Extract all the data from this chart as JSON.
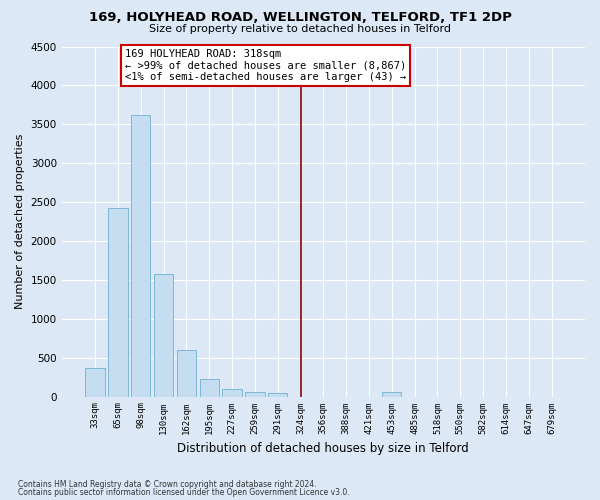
{
  "title": "169, HOLYHEAD ROAD, WELLINGTON, TELFORD, TF1 2DP",
  "subtitle": "Size of property relative to detached houses in Telford",
  "xlabel": "Distribution of detached houses by size in Telford",
  "ylabel": "Number of detached properties",
  "footnote1": "Contains HM Land Registry data © Crown copyright and database right 2024.",
  "footnote2": "Contains public sector information licensed under the Open Government Licence v3.0.",
  "bar_labels": [
    "33sqm",
    "65sqm",
    "98sqm",
    "130sqm",
    "162sqm",
    "195sqm",
    "227sqm",
    "259sqm",
    "291sqm",
    "324sqm",
    "356sqm",
    "388sqm",
    "421sqm",
    "453sqm",
    "485sqm",
    "518sqm",
    "550sqm",
    "582sqm",
    "614sqm",
    "647sqm",
    "679sqm"
  ],
  "bar_values": [
    370,
    2420,
    3620,
    1580,
    600,
    220,
    100,
    60,
    40,
    0,
    0,
    0,
    0,
    60,
    0,
    0,
    0,
    0,
    0,
    0,
    0
  ],
  "bar_color": "#c5ddf0",
  "bar_edge_color": "#7eb5d6",
  "bg_color": "#dce8f5",
  "grid_color": "#ffffff",
  "vline_x_index": 9,
  "vline_color": "#8b0000",
  "annotation_text": "169 HOLYHEAD ROAD: 318sqm\n← >99% of detached houses are smaller (8,867)\n<1% of semi-detached houses are larger (43) →",
  "annotation_box_color": "white",
  "annotation_box_edge": "#cc0000",
  "ylim": [
    0,
    4500
  ],
  "yticks": [
    0,
    500,
    1000,
    1500,
    2000,
    2500,
    3000,
    3500,
    4000,
    4500
  ],
  "title_fontsize": 9.5,
  "subtitle_fontsize": 8.0,
  "ylabel_fontsize": 8.0,
  "xlabel_fontsize": 8.5
}
